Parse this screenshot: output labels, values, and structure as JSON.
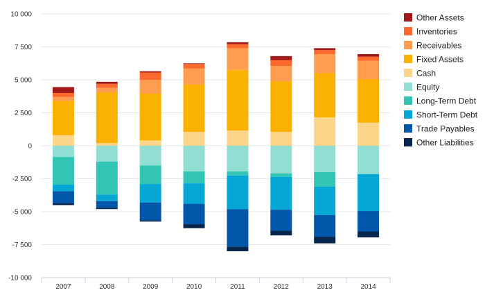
{
  "chart_data": {
    "type": "bar",
    "stacked": true,
    "title": "",
    "xlabel": "",
    "ylabel": "",
    "categories": [
      "2007",
      "2008",
      "2009",
      "2010",
      "2011",
      "2012",
      "2013",
      "2014"
    ],
    "ylim": [
      -10000,
      10000
    ],
    "yticks": [
      10000,
      7500,
      5000,
      2500,
      0,
      -2500,
      -5000,
      -7500,
      -10000
    ],
    "ytick_labels": [
      "10 000",
      "7 500",
      "5 000",
      "2 500",
      "0",
      "-2 500",
      "-5 000",
      "-7 500",
      "-10 000"
    ],
    "grid": true,
    "legend_position": "right",
    "series": [
      {
        "name": "Cash",
        "color": "#fdd58a",
        "values": [
          800,
          200,
          400,
          1050,
          1150,
          1050,
          2150,
          1750
        ]
      },
      {
        "name": "Fixed Assets",
        "color": "#fbb100",
        "values": [
          2600,
          3850,
          3550,
          3600,
          4600,
          3850,
          3350,
          3300
        ]
      },
      {
        "name": "Receivables",
        "color": "#fe9c4f",
        "values": [
          300,
          350,
          1050,
          1200,
          1650,
          1150,
          1450,
          1400
        ]
      },
      {
        "name": "Inventories",
        "color": "#fc6a2d",
        "values": [
          300,
          300,
          550,
          350,
          300,
          450,
          300,
          300
        ]
      },
      {
        "name": "Other Assets",
        "color": "#a01a1a",
        "values": [
          450,
          150,
          100,
          50,
          150,
          300,
          150,
          200
        ]
      },
      {
        "name": "Equity",
        "color": "#91dfd4",
        "values": [
          -850,
          -1200,
          -1500,
          -1950,
          -1950,
          -2100,
          -2000,
          -2150
        ]
      },
      {
        "name": "Long-Term Debt",
        "color": "#33c5b4",
        "values": [
          -2100,
          -2500,
          -1400,
          -900,
          -300,
          -250,
          -1100,
          0
        ]
      },
      {
        "name": "Short-Term Debt",
        "color": "#07a7d5",
        "values": [
          -500,
          -500,
          -1400,
          -1550,
          -2550,
          -2500,
          -2150,
          -2800
        ]
      },
      {
        "name": "Trade Payables",
        "color": "#0357aa",
        "values": [
          -900,
          -500,
          -1350,
          -1550,
          -2850,
          -1600,
          -1650,
          -1550
        ]
      },
      {
        "name": "Other Liabilities",
        "color": "#07264d",
        "values": [
          -150,
          -100,
          -100,
          -300,
          -350,
          -350,
          -500,
          -450
        ]
      }
    ],
    "legend_order": [
      "Other Assets",
      "Inventories",
      "Receivables",
      "Fixed Assets",
      "Cash",
      "Equity",
      "Long-Term Debt",
      "Short-Term Debt",
      "Trade Payables",
      "Other Liabilities"
    ]
  }
}
